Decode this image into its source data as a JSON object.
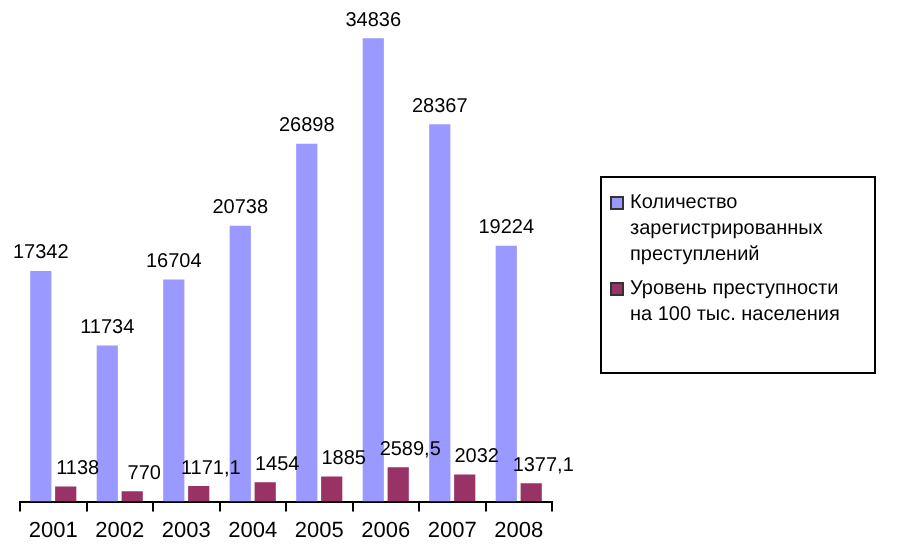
{
  "chart_data": {
    "type": "bar",
    "categories": [
      "2001",
      "2002",
      "2003",
      "2004",
      "2005",
      "2006",
      "2007",
      "2008"
    ],
    "series": [
      {
        "name": "Количество зарегистрированных преступлений",
        "color": "#9999ff",
        "values": [
          17342,
          11734,
          16704,
          20738,
          26898,
          34836,
          28367,
          19224
        ],
        "value_labels": [
          "17342",
          "11734",
          "16704",
          "20738",
          "26898",
          "34836",
          "28367",
          "19224"
        ]
      },
      {
        "name": "Уровень преступности на 100 тыс. населения",
        "color": "#993366",
        "values": [
          1138,
          770,
          1171.1,
          1454,
          1885,
          2589.5,
          2032,
          1377.1
        ],
        "value_labels": [
          "1138",
          "770",
          "1171,1",
          "1454",
          "1885",
          "2589,5",
          "2032",
          "1377,1"
        ]
      }
    ],
    "legend": "right",
    "grid": false
  }
}
